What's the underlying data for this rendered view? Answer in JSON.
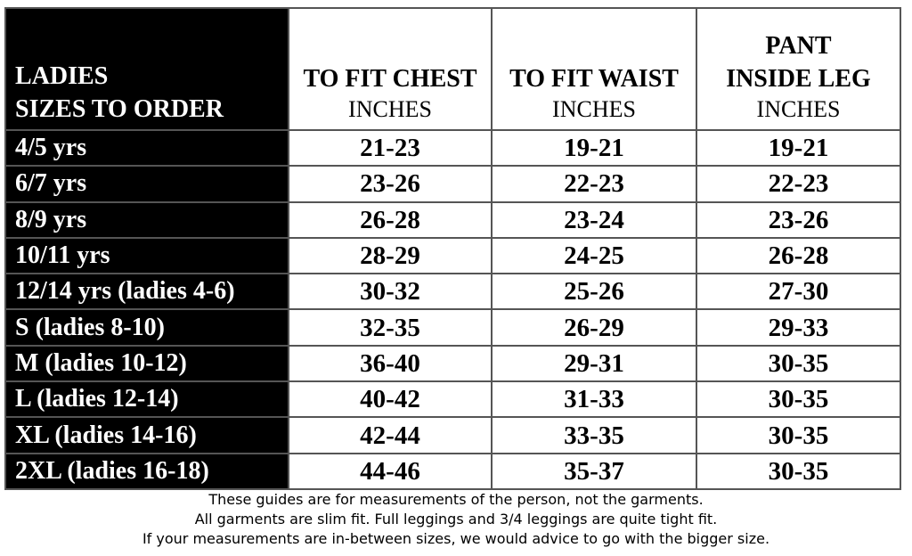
{
  "header": {
    "size_col": [
      "LADIES",
      "SIZES TO ORDER"
    ],
    "chest": {
      "title": "TO FIT CHEST",
      "unit": "INCHES"
    },
    "waist": {
      "title": "TO FIT WAIST",
      "unit": "INCHES"
    },
    "leg": {
      "title": [
        "PANT",
        "INSIDE LEG"
      ],
      "unit": "INCHES"
    }
  },
  "rows": [
    {
      "size": "4/5 yrs",
      "chest": "21-23",
      "waist": "19-21",
      "leg": "19-21"
    },
    {
      "size": "6/7 yrs",
      "chest": "23-26",
      "waist": "22-23",
      "leg": "22-23"
    },
    {
      "size": "8/9 yrs",
      "chest": "26-28",
      "waist": "23-24",
      "leg": "23-26"
    },
    {
      "size": "10/11 yrs",
      "chest": "28-29",
      "waist": "24-25",
      "leg": "26-28"
    },
    {
      "size": "12/14 yrs (ladies 4-6)",
      "chest": "30-32",
      "waist": "25-26",
      "leg": "27-30"
    },
    {
      "size": "S (ladies 8-10)",
      "chest": "32-35",
      "waist": "26-29",
      "leg": "29-33"
    },
    {
      "size": "M (ladies 10-12)",
      "chest": "36-40",
      "waist": "29-31",
      "leg": "30-35"
    },
    {
      "size": "L (ladies 12-14)",
      "chest": "40-42",
      "waist": "31-33",
      "leg": "30-35"
    },
    {
      "size": "XL (ladies 14-16)",
      "chest": "42-44",
      "waist": "33-35",
      "leg": "30-35"
    },
    {
      "size": "2XL (ladies 16-18)",
      "chest": "44-46",
      "waist": "35-37",
      "leg": "30-35"
    }
  ],
  "notes": [
    "These guides are for measurements of the person, not the garments.",
    "All garments are slim fit. Full leggings and 3/4 leggings are quite tight fit.",
    "If your measurements are in-between sizes, we would advice to go with the bigger size."
  ]
}
